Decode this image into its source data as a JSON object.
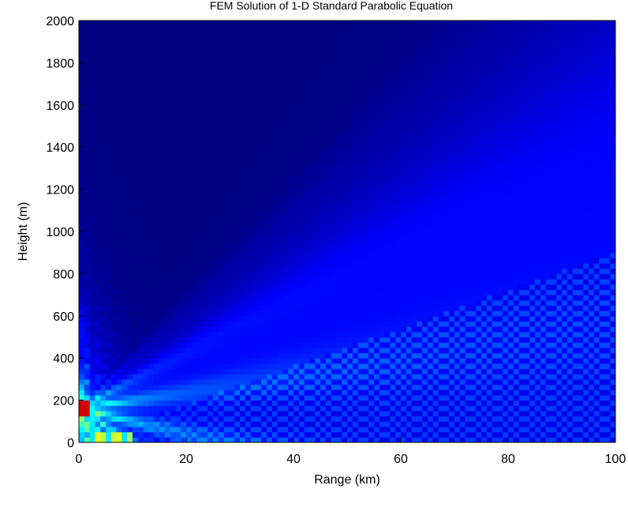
{
  "chart_data": {
    "type": "heatmap",
    "title": "FEM Solution of 1-D Standard Parabolic Equation",
    "xlabel": "Range (km)",
    "ylabel": "Height (m)",
    "xlim": [
      0,
      100
    ],
    "ylim": [
      0,
      2000
    ],
    "xticks": [
      0,
      20,
      40,
      60,
      80,
      100
    ],
    "yticks": [
      0,
      200,
      400,
      600,
      800,
      1000,
      1200,
      1400,
      1600,
      1800,
      2000
    ],
    "colormap": "jet",
    "source_height_m": 160,
    "grid": false,
    "colors": {
      "background_low": "#000080",
      "field_mid": "#0020ff",
      "beam_high": "#40c0ff",
      "peak": "#ff2000"
    }
  }
}
